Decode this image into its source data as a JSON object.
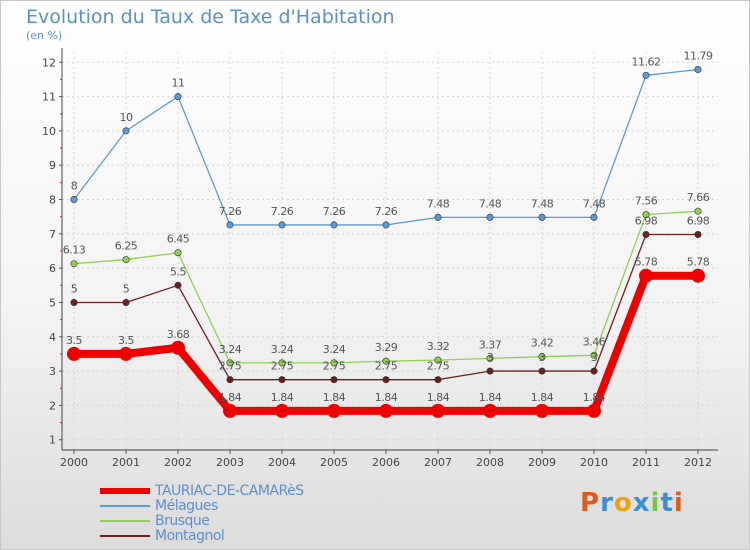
{
  "title": "Evolution du Taux de Taxe d'Habitation",
  "subtitle": "(en %)",
  "logo": {
    "text": "Proxiti",
    "letters": [
      {
        "ch": "P",
        "color": "#e05a1c"
      },
      {
        "ch": "r",
        "color": "#3a8fd4"
      },
      {
        "ch": "o",
        "color": "#f0a010"
      },
      {
        "ch": "x",
        "color": "#3a8fd4"
      },
      {
        "ch": "i",
        "color": "#7cc243"
      },
      {
        "ch": "t",
        "color": "#3a8fd4"
      },
      {
        "ch": "i",
        "color": "#e05a1c"
      }
    ]
  },
  "chart_data": {
    "type": "line",
    "x": [
      "2000",
      "2001",
      "2002",
      "2003",
      "2004",
      "2005",
      "2006",
      "2007",
      "2008",
      "2009",
      "2010",
      "2011",
      "2012"
    ],
    "ylim": [
      0.7,
      12.3
    ],
    "yticks": [
      1,
      2,
      3,
      4,
      5,
      6,
      7,
      8,
      9,
      10,
      11,
      12
    ],
    "grid": true,
    "legend_position": "bottom-left",
    "series": [
      {
        "name": "TAURIAC-DE-CAMARèS",
        "color": "#ee0000",
        "values": [
          3.5,
          3.5,
          3.68,
          1.84,
          1.84,
          1.84,
          1.84,
          1.84,
          1.84,
          1.84,
          1.84,
          5.78,
          5.78
        ],
        "labels": [
          "3.5",
          "3.5",
          "3.68",
          "1.84",
          "1.84",
          "1.84",
          "1.84",
          "1.84",
          "1.84",
          "1.84",
          "1.84",
          "5.78",
          "5.78"
        ]
      },
      {
        "name": "Mélagues",
        "color": "#5b9bd5",
        "values": [
          8,
          10,
          11,
          7.26,
          7.26,
          7.26,
          7.26,
          7.48,
          7.48,
          7.48,
          7.48,
          11.62,
          11.79
        ],
        "labels": [
          "8",
          "10",
          "11",
          "7.26",
          "7.26",
          "7.26",
          "7.26",
          "7.48",
          "7.48",
          "7.48",
          "7.48",
          "11.62",
          "11.79"
        ]
      },
      {
        "name": "Brusque",
        "color": "#8fd24f",
        "values": [
          6.13,
          6.25,
          6.45,
          3.24,
          3.24,
          3.24,
          3.29,
          3.32,
          3.37,
          3.42,
          3.46,
          7.56,
          7.66
        ],
        "labels": [
          "6.13",
          "6.25",
          "6.45",
          "3.24",
          "3.24",
          "3.24",
          "3.29",
          "3.32",
          "3.37",
          "3.42",
          "3.46",
          "7.56",
          "7.66"
        ]
      },
      {
        "name": "Montagnol",
        "color": "#6b1f1f",
        "values": [
          5,
          5,
          5.5,
          2.75,
          2.75,
          2.75,
          2.75,
          2.75,
          3,
          3,
          3,
          6.98,
          6.98
        ],
        "labels": [
          "5",
          "5",
          "5.5",
          "2.75",
          "2.75",
          "2.75",
          "2.75",
          "2.75",
          "3",
          "3",
          "3",
          "6.98",
          "6.98"
        ]
      }
    ]
  }
}
